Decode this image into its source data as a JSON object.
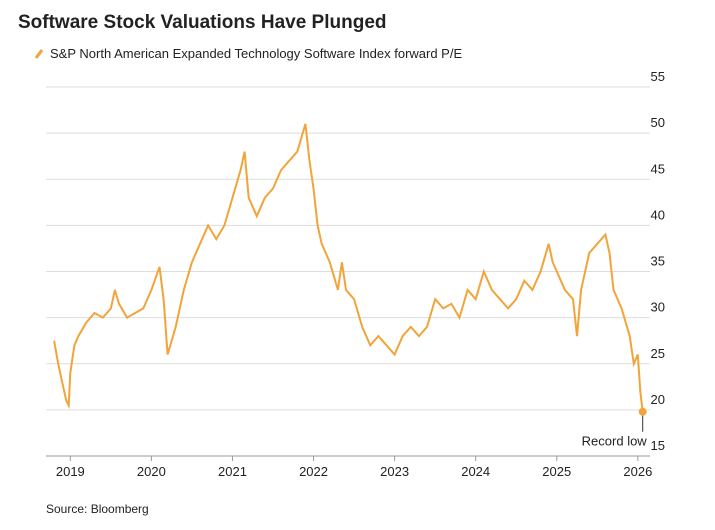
{
  "chart_data": {
    "type": "line",
    "title": "Software Stock Valuations Have Plunged",
    "source": "Source: Bloomberg",
    "grid": true,
    "series": [
      {
        "name": "S&P North American Expanded Technology Software Index forward P/E",
        "color": "#f2a43a",
        "x": [
          2018.8,
          2018.85,
          2018.9,
          2018.95,
          2018.98,
          2019.0,
          2019.05,
          2019.1,
          2019.2,
          2019.3,
          2019.4,
          2019.5,
          2019.55,
          2019.6,
          2019.7,
          2019.8,
          2019.9,
          2020.0,
          2020.1,
          2020.15,
          2020.2,
          2020.3,
          2020.4,
          2020.5,
          2020.6,
          2020.7,
          2020.8,
          2020.9,
          2021.0,
          2021.1,
          2021.15,
          2021.2,
          2021.3,
          2021.4,
          2021.5,
          2021.6,
          2021.7,
          2021.8,
          2021.9,
          2021.95,
          2022.0,
          2022.05,
          2022.1,
          2022.2,
          2022.3,
          2022.35,
          2022.4,
          2022.5,
          2022.6,
          2022.7,
          2022.8,
          2022.9,
          2023.0,
          2023.1,
          2023.2,
          2023.3,
          2023.4,
          2023.5,
          2023.6,
          2023.7,
          2023.8,
          2023.9,
          2024.0,
          2024.1,
          2024.2,
          2024.3,
          2024.4,
          2024.5,
          2024.6,
          2024.7,
          2024.8,
          2024.9,
          2024.95,
          2025.0,
          2025.1,
          2025.2,
          2025.25,
          2025.3,
          2025.4,
          2025.5,
          2025.6,
          2025.65,
          2025.7,
          2025.8,
          2025.9,
          2025.95,
          2026.0,
          2026.03,
          2026.06
        ],
        "values": [
          27.5,
          25,
          23,
          21,
          20.5,
          24,
          27,
          28,
          29.5,
          30.5,
          30,
          31,
          33,
          31.5,
          30,
          30.5,
          31,
          33,
          35.5,
          32,
          26,
          29,
          33,
          36,
          38,
          40,
          38.5,
          40,
          43,
          46,
          48,
          43,
          41,
          43,
          44,
          46,
          47,
          48,
          51,
          47,
          44,
          40,
          38,
          36,
          33,
          36,
          33,
          32,
          29,
          27,
          28,
          27,
          26,
          28,
          29,
          28,
          29,
          32,
          31,
          31.5,
          30,
          33,
          32,
          35,
          33,
          32,
          31,
          32,
          34,
          33,
          35,
          38,
          36,
          35,
          33,
          32,
          28,
          33,
          37,
          38,
          39,
          37,
          33,
          31,
          28,
          25,
          26,
          22,
          19.8
        ]
      }
    ],
    "annotations": [
      {
        "text": "Record low",
        "x": 2026.06,
        "y": 19.8
      }
    ],
    "xlim": [
      2018.7,
      2026.15
    ],
    "xticks": [
      2019,
      2020,
      2021,
      2022,
      2023,
      2024,
      2025,
      2026
    ],
    "ylim": [
      15,
      55
    ],
    "yticks": [
      15,
      20,
      25,
      30,
      35,
      40,
      45,
      50,
      55
    ]
  }
}
